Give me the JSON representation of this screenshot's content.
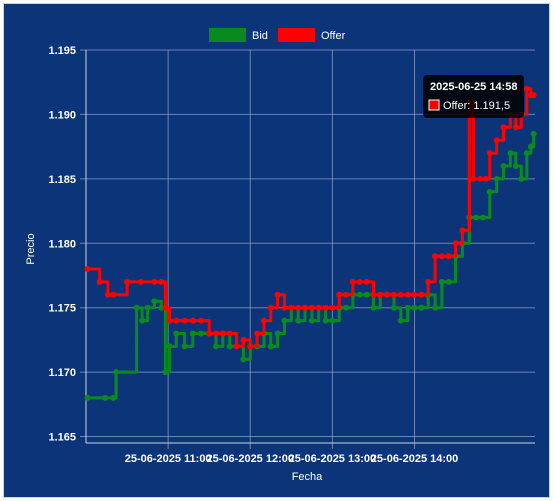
{
  "chart_data": {
    "type": "line",
    "xlabel": "Fecha",
    "ylabel": "Precio",
    "ylim": [
      1.1645,
      1.195
    ],
    "y_ticks": [
      "1.165",
      "1.170",
      "1.175",
      "1.180",
      "1.185",
      "1.190",
      "1.195"
    ],
    "y_tick_values": [
      1.165,
      1.17,
      1.175,
      1.18,
      1.185,
      1.19,
      1.195
    ],
    "x_range_minutes": [
      600,
      928
    ],
    "x_ticks": [
      {
        "label": "25-06-2025  11:00",
        "minute": 660
      },
      {
        "label": "25-06-2025  12:00",
        "minute": 720
      },
      {
        "label": "25-06-2025  13:00",
        "minute": 780
      },
      {
        "label": "25-06-2025  14:00",
        "minute": 840
      }
    ],
    "grid": true,
    "legend_position": "top",
    "series": [
      {
        "name": "Bid",
        "color": "#0a8a1e",
        "points": [
          [
            601,
            1.168
          ],
          [
            614,
            1.168
          ],
          [
            620,
            1.168
          ],
          [
            622,
            1.17
          ],
          [
            637,
            1.175
          ],
          [
            641,
            1.174
          ],
          [
            645,
            1.175
          ],
          [
            650,
            1.1755
          ],
          [
            655,
            1.175
          ],
          [
            658,
            1.17
          ],
          [
            661,
            1.172
          ],
          [
            666,
            1.173
          ],
          [
            672,
            1.172
          ],
          [
            678,
            1.173
          ],
          [
            684,
            1.173
          ],
          [
            690,
            1.173
          ],
          [
            695,
            1.172
          ],
          [
            700,
            1.173
          ],
          [
            705,
            1.172
          ],
          [
            710,
            1.172
          ],
          [
            715,
            1.171
          ],
          [
            720,
            1.172
          ],
          [
            725,
            1.172
          ],
          [
            730,
            1.173
          ],
          [
            735,
            1.172
          ],
          [
            740,
            1.173
          ],
          [
            745,
            1.174
          ],
          [
            750,
            1.175
          ],
          [
            755,
            1.174
          ],
          [
            760,
            1.175
          ],
          [
            765,
            1.174
          ],
          [
            770,
            1.175
          ],
          [
            775,
            1.174
          ],
          [
            780,
            1.174
          ],
          [
            785,
            1.175
          ],
          [
            790,
            1.175
          ],
          [
            795,
            1.176
          ],
          [
            800,
            1.176
          ],
          [
            805,
            1.176
          ],
          [
            810,
            1.175
          ],
          [
            815,
            1.176
          ],
          [
            820,
            1.176
          ],
          [
            825,
            1.175
          ],
          [
            830,
            1.174
          ],
          [
            835,
            1.175
          ],
          [
            840,
            1.175
          ],
          [
            845,
            1.175
          ],
          [
            850,
            1.176
          ],
          [
            855,
            1.175
          ],
          [
            860,
            1.177
          ],
          [
            865,
            1.177
          ],
          [
            870,
            1.179
          ],
          [
            875,
            1.18
          ],
          [
            880,
            1.182
          ],
          [
            885,
            1.182
          ],
          [
            890,
            1.182
          ],
          [
            895,
            1.184
          ],
          [
            900,
            1.185
          ],
          [
            905,
            1.186
          ],
          [
            910,
            1.187
          ],
          [
            914,
            1.186
          ],
          [
            918,
            1.185
          ],
          [
            922,
            1.187
          ],
          [
            925,
            1.1875
          ],
          [
            927,
            1.1885
          ]
        ]
      },
      {
        "name": "Offer",
        "color": "#ff0000",
        "points": [
          [
            601,
            1.178
          ],
          [
            610,
            1.177
          ],
          [
            616,
            1.176
          ],
          [
            620,
            1.176
          ],
          [
            630,
            1.177
          ],
          [
            640,
            1.177
          ],
          [
            650,
            1.177
          ],
          [
            655,
            1.177
          ],
          [
            658,
            1.175
          ],
          [
            661,
            1.174
          ],
          [
            666,
            1.174
          ],
          [
            672,
            1.174
          ],
          [
            678,
            1.174
          ],
          [
            684,
            1.174
          ],
          [
            690,
            1.173
          ],
          [
            695,
            1.173
          ],
          [
            700,
            1.173
          ],
          [
            705,
            1.173
          ],
          [
            710,
            1.172
          ],
          [
            715,
            1.1725
          ],
          [
            720,
            1.172
          ],
          [
            725,
            1.173
          ],
          [
            730,
            1.174
          ],
          [
            735,
            1.175
          ],
          [
            740,
            1.176
          ],
          [
            745,
            1.175
          ],
          [
            750,
            1.175
          ],
          [
            755,
            1.175
          ],
          [
            760,
            1.175
          ],
          [
            765,
            1.175
          ],
          [
            770,
            1.175
          ],
          [
            775,
            1.175
          ],
          [
            780,
            1.175
          ],
          [
            785,
            1.176
          ],
          [
            790,
            1.176
          ],
          [
            795,
            1.177
          ],
          [
            800,
            1.177
          ],
          [
            805,
            1.177
          ],
          [
            810,
            1.176
          ],
          [
            815,
            1.176
          ],
          [
            820,
            1.176
          ],
          [
            825,
            1.176
          ],
          [
            830,
            1.176
          ],
          [
            835,
            1.176
          ],
          [
            840,
            1.176
          ],
          [
            845,
            1.176
          ],
          [
            850,
            1.177
          ],
          [
            855,
            1.179
          ],
          [
            860,
            1.179
          ],
          [
            865,
            1.179
          ],
          [
            870,
            1.18
          ],
          [
            875,
            1.181
          ],
          [
            880,
            1.191
          ],
          [
            883,
            1.185
          ],
          [
            888,
            1.185
          ],
          [
            892,
            1.185
          ],
          [
            895,
            1.187
          ],
          [
            900,
            1.188
          ],
          [
            905,
            1.189
          ],
          [
            910,
            1.19
          ],
          [
            914,
            1.189
          ],
          [
            918,
            1.19
          ],
          [
            922,
            1.192
          ],
          [
            925,
            1.1915
          ],
          [
            927,
            1.1915
          ]
        ]
      }
    ],
    "tooltip": {
      "title": "2025-06-25 14:58",
      "label": "Offer: 1.191,5",
      "series": "Offer"
    }
  }
}
